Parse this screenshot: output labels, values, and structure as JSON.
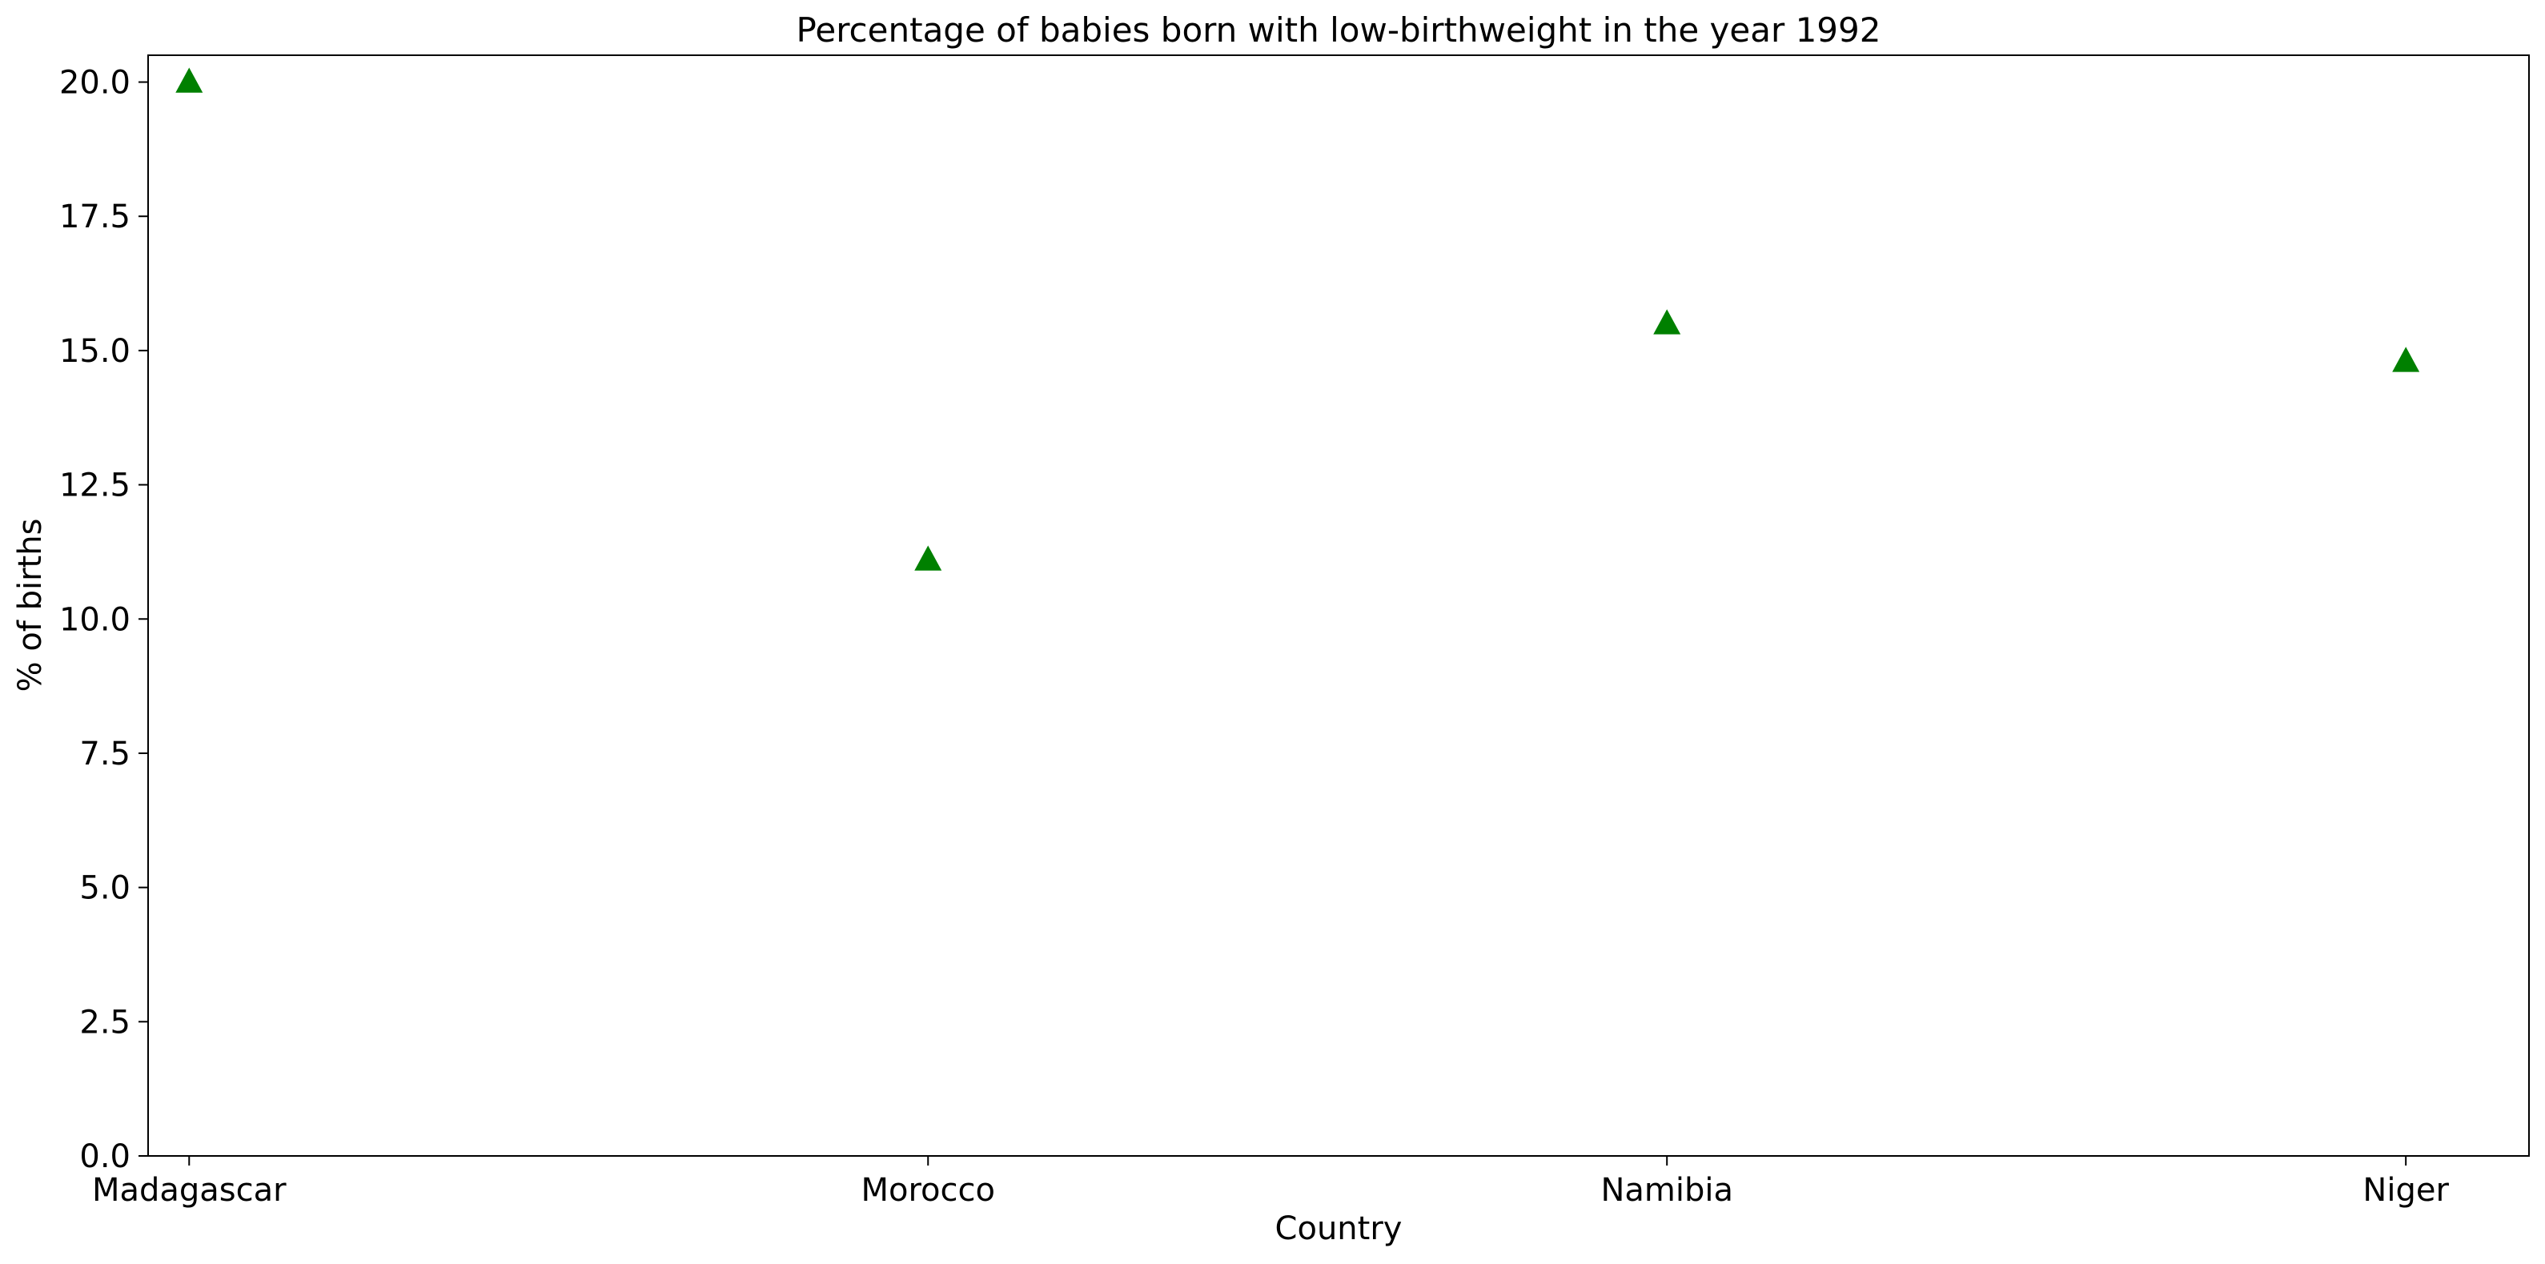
{
  "chart_data": {
    "type": "scatter",
    "title": "Percentage of babies born with low-birthweight in the year 1992",
    "xlabel": "Country",
    "ylabel": "% of births",
    "categories": [
      "Madagascar",
      "Morocco",
      "Namibia",
      "Niger"
    ],
    "series": [
      {
        "values": [
          20.0,
          11.1,
          15.5,
          14.8
        ],
        "color": "#008000",
        "marker": "triangle-up"
      }
    ],
    "ylim": [
      0,
      20.5
    ],
    "yticks": [
      "0.0",
      "2.5",
      "5.0",
      "7.5",
      "10.0",
      "12.5",
      "15.0",
      "17.5",
      "20.0"
    ],
    "grid": false,
    "legend": "none"
  }
}
